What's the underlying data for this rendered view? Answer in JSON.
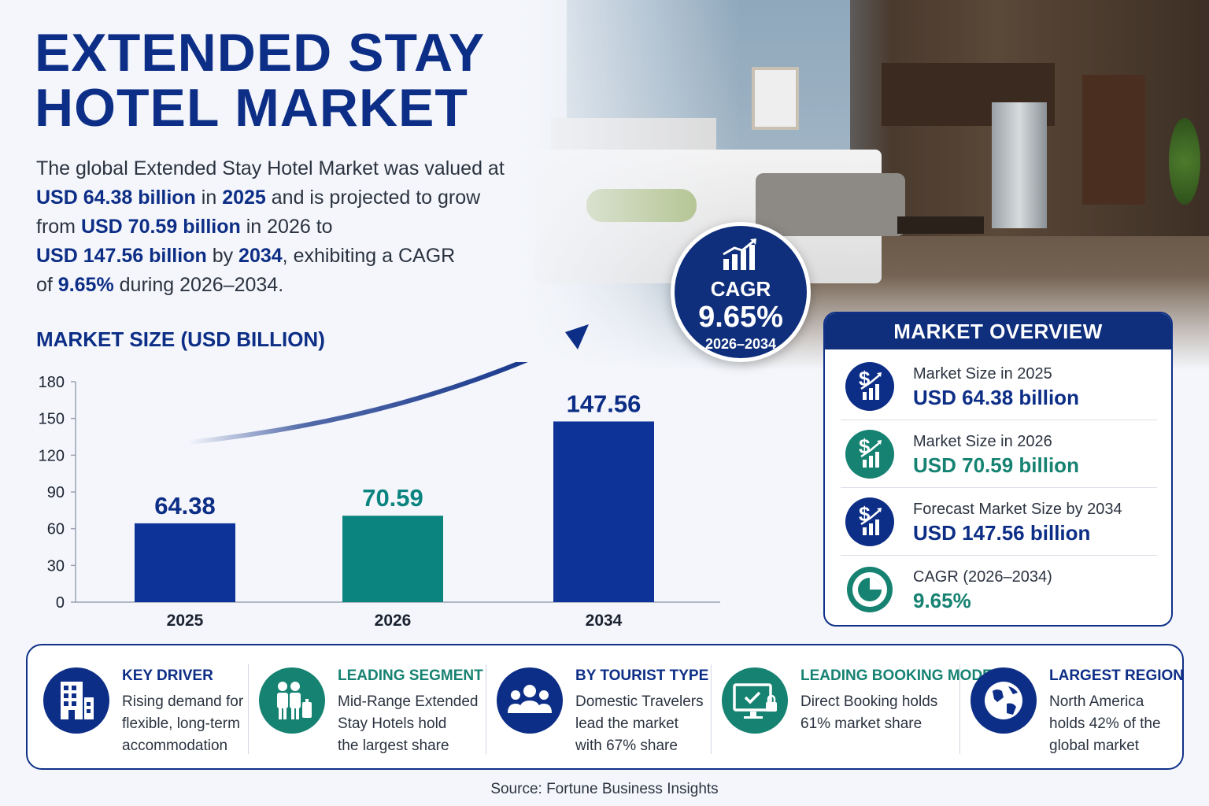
{
  "title_line1": "EXTENDED STAY",
  "title_line2": "HOTEL MARKET",
  "intro": {
    "p1": "The global Extended Stay Hotel Market was valued at",
    "p2": "USD 64.38 billion",
    "p3": " in ",
    "p4": "2025",
    "p5": " and is projected to grow",
    "p6": "from ",
    "p7": "USD 70.59 billion",
    "p8": " in 2026 to",
    "p9": "USD 147.56 billion",
    "p10": " by ",
    "p11": "2034",
    "p12": ", exhibiting a CAGR",
    "p13": "of ",
    "p14": "9.65%",
    "p15": " during 2026–2034."
  },
  "chart_title": "MARKET SIZE (USD BILLION)",
  "chart_data": {
    "type": "bar",
    "categories": [
      "2025",
      "2026",
      "2034"
    ],
    "values": [
      64.38,
      70.59,
      147.56
    ],
    "data_labels": [
      "64.38",
      "70.59",
      "147.56"
    ],
    "yticks": [
      0,
      30,
      60,
      90,
      120,
      150,
      180
    ],
    "ylim": [
      0,
      180
    ],
    "grid": false,
    "colors": [
      "#0d3399",
      "#0b8480",
      "#0d3399"
    ],
    "label_colors": [
      "#0d2e86",
      "#0b8480",
      "#0d2e86"
    ]
  },
  "cagr_badge": {
    "label": "CAGR",
    "value": "9.65%",
    "years": "2026–2034"
  },
  "overview": {
    "header": "MARKET OVERVIEW",
    "rows": [
      {
        "label": "Market Size in 2025",
        "value": "USD 64.38 billion",
        "color": "#0d2e86",
        "icon": "dollar-growth-icon"
      },
      {
        "label": "Market Size in 2026",
        "value": "USD 70.59 billion",
        "color": "#168272",
        "icon": "dollar-growth-icon"
      },
      {
        "label": "Forecast Market Size by 2034",
        "value": "USD 147.56 billion",
        "color": "#0d2e86",
        "icon": "dollar-growth-icon"
      },
      {
        "label": "CAGR (2026–2034)",
        "value": "9.65%",
        "color": "#168272",
        "icon": "pie-chart-icon"
      }
    ]
  },
  "highlights": [
    {
      "heading": "KEY DRIVER",
      "lines": [
        "Rising demand for",
        "flexible, long-term",
        "accommodation"
      ],
      "color": "#0d2e86",
      "icon": "building-icon"
    },
    {
      "heading": "LEADING SEGMENT",
      "lines": [
        "Mid-Range Extended",
        "Stay Hotels hold",
        "the largest share"
      ],
      "color": "#168272",
      "icon": "travelers-luggage-icon"
    },
    {
      "heading": "BY TOURIST TYPE",
      "lines": [
        "Domestic Travelers",
        "lead the market",
        "with 67% share"
      ],
      "color": "#0d2e86",
      "icon": "group-icon"
    },
    {
      "heading": "LEADING BOOKING MODE",
      "lines": [
        "Direct Booking holds",
        "61% market share"
      ],
      "color": "#168272",
      "icon": "monitor-booking-icon"
    },
    {
      "heading": "LARGEST REGION",
      "lines": [
        "North America",
        "holds 42% of the",
        "global market"
      ],
      "color": "#0d2e86",
      "icon": "globe-icon"
    }
  ],
  "source": "Source: Fortune Business Insights"
}
